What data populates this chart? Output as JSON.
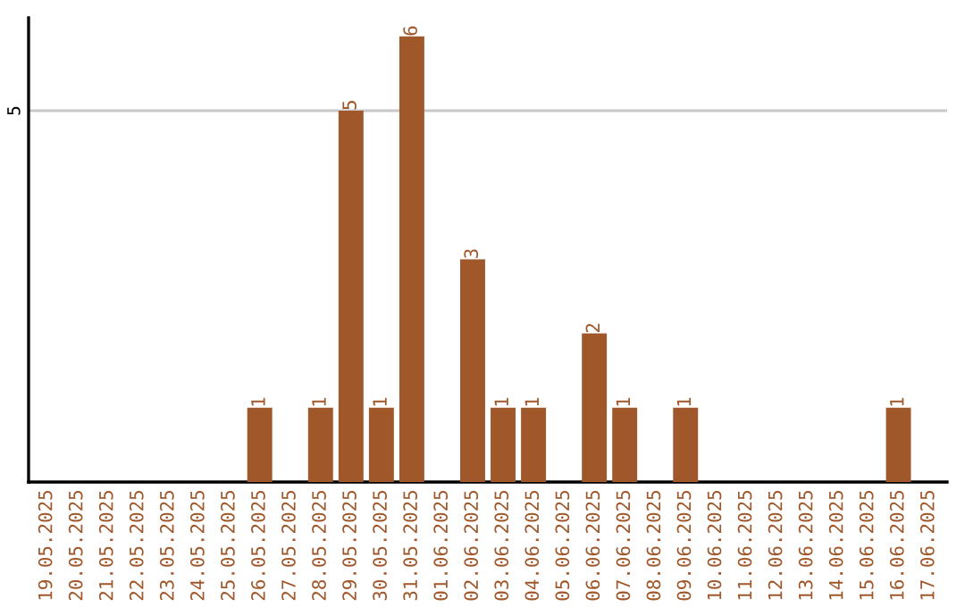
{
  "chart_data": {
    "type": "bar",
    "categories": [
      "19.05.2025",
      "20.05.2025",
      "21.05.2025",
      "22.05.2025",
      "23.05.2025",
      "24.05.2025",
      "25.05.2025",
      "26.05.2025",
      "27.05.2025",
      "28.05.2025",
      "29.05.2025",
      "30.05.2025",
      "31.05.2025",
      "01.06.2025",
      "02.06.2025",
      "03.06.2025",
      "04.06.2025",
      "05.06.2025",
      "06.06.2025",
      "07.06.2025",
      "08.06.2025",
      "09.06.2025",
      "10.06.2025",
      "11.06.2025",
      "12.06.2025",
      "13.06.2025",
      "14.06.2025",
      "15.06.2025",
      "16.06.2025",
      "17.06.2025"
    ],
    "values": [
      0,
      0,
      0,
      0,
      0,
      0,
      0,
      1,
      0,
      1,
      5,
      1,
      6,
      0,
      3,
      1,
      1,
      0,
      2,
      1,
      0,
      1,
      0,
      0,
      0,
      0,
      0,
      0,
      1,
      0
    ],
    "value_labels": [
      null,
      null,
      null,
      null,
      null,
      null,
      null,
      "1",
      null,
      "1",
      "5",
      "1",
      "6",
      null,
      "3",
      "1",
      "1",
      null,
      "2",
      "1",
      null,
      "1",
      null,
      null,
      null,
      null,
      null,
      null,
      "1",
      null
    ],
    "color": "#a0572a",
    "ylim": [
      0,
      6.25
    ],
    "yticks": [
      5
    ],
    "grid": "y"
  }
}
